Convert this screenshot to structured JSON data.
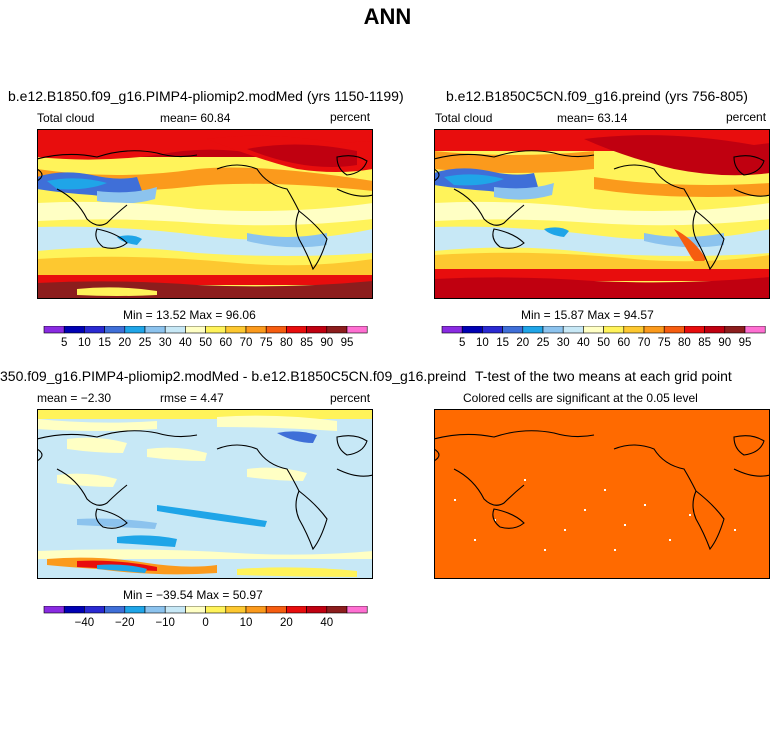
{
  "title": "ANN",
  "colors": {
    "scale": [
      "#8a2be2",
      "#0000b4",
      "#2a2ad2",
      "#3f6fd8",
      "#1fa5e8",
      "#8cc3ee",
      "#c7e8f6",
      "#ffffc4",
      "#fff35a",
      "#fdc830",
      "#fb9a1c",
      "#f65d10",
      "#e80d0d",
      "#c00010",
      "#8c1d1d",
      "#ff6fd2"
    ],
    "orange": "#ff6a00"
  },
  "panels": {
    "top_left": {
      "title": "b.e12.B1850.f09_g16.PIMP4-pliomip2.modMed (yrs 1150-1199)",
      "variable": "Total cloud",
      "mean_text": "mean=  60.84",
      "units": "percent",
      "minmax": "Min =  13.52  Max =  96.06",
      "labels": [
        "5",
        "10",
        "15",
        "20",
        "25",
        "30",
        "40",
        "50",
        "60",
        "70",
        "75",
        "80",
        "85",
        "90",
        "95"
      ]
    },
    "top_right": {
      "title": "b.e12.B1850C5CN.f09_g16.preind (yrs 756-805)",
      "variable": "Total cloud",
      "mean_text": "mean=  63.14",
      "units": "percent",
      "minmax": "Min =  15.87  Max =  94.57",
      "labels": [
        "5",
        "10",
        "15",
        "20",
        "25",
        "30",
        "40",
        "50",
        "60",
        "70",
        "75",
        "80",
        "85",
        "90",
        "95"
      ]
    },
    "bottom_left": {
      "title": "350.f09_g16.PIMP4-pliomip2.modMed - b.e12.B1850C5CN.f09_g16.preind",
      "mean_text": "mean =  −2.30",
      "rmse_text": "rmse =   4.47",
      "units": "percent",
      "minmax": "Min = −39.54  Max =  50.97",
      "labels": [
        "−40",
        "−20",
        "−10",
        "0",
        "10",
        "20",
        "40"
      ]
    },
    "bottom_right": {
      "title": "T-test of the two means at each grid point",
      "subtitle": "Colored cells are significant at the 0.05 level"
    }
  }
}
